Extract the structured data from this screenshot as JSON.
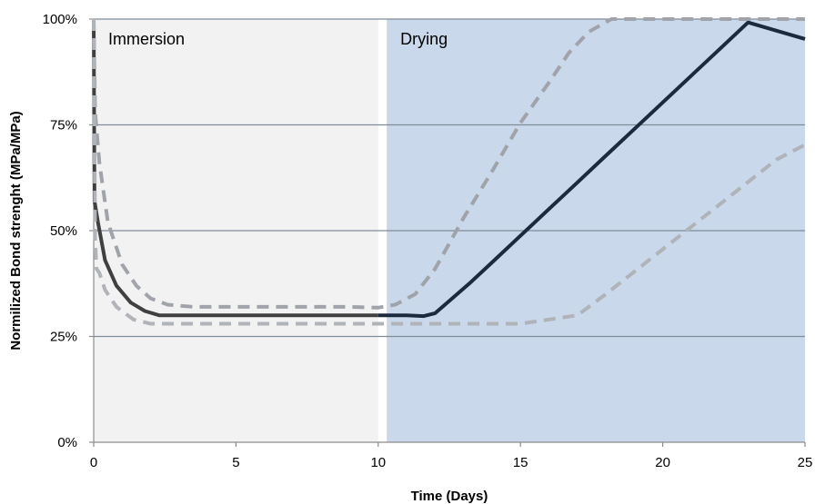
{
  "chart_data": {
    "type": "line",
    "title": "",
    "xlabel": "Time (Days)",
    "ylabel": "Normilized Bond strenght (MPa/MPa)",
    "xlim": [
      0,
      25
    ],
    "ylim": [
      0,
      100
    ],
    "x_ticks": [
      "0",
      "5",
      "10",
      "15",
      "20",
      "25"
    ],
    "y_ticks": [
      "0%",
      "25%",
      "50%",
      "75%",
      "100%"
    ],
    "grid": "horizontal",
    "legend": "none",
    "regions": [
      {
        "label": "Immersion",
        "x_start": 0,
        "x_end": 10,
        "color": "#f2f2f2"
      },
      {
        "label": "Drying",
        "x_start": 10.3,
        "x_end": 25,
        "color": "#c9d8ea"
      }
    ],
    "series": [
      {
        "style": "solid",
        "color_immersion": "#404040",
        "color_drying": "#1c2a40",
        "points": [
          [
            0,
            100
          ],
          [
            0.03,
            57
          ],
          [
            0.15,
            52
          ],
          [
            0.4,
            43
          ],
          [
            0.8,
            37
          ],
          [
            1.3,
            33
          ],
          [
            1.8,
            31
          ],
          [
            2.3,
            30
          ],
          [
            3,
            30
          ],
          [
            5,
            30
          ],
          [
            8,
            30
          ],
          [
            10,
            30
          ],
          [
            11,
            30
          ],
          [
            11.6,
            29.8
          ],
          [
            12,
            30.5
          ],
          [
            12.6,
            34
          ],
          [
            13.2,
            37.5
          ],
          [
            14,
            42.5
          ],
          [
            15,
            48.8
          ],
          [
            16,
            55.1
          ],
          [
            17,
            61.4
          ],
          [
            18,
            67.7
          ],
          [
            19,
            74
          ],
          [
            20,
            80.3
          ],
          [
            21,
            86.6
          ],
          [
            22,
            92.9
          ],
          [
            23,
            99.2
          ],
          [
            24,
            105.5
          ],
          [
            25,
            95.3
          ]
        ]
      },
      {
        "style": "dashed",
        "color": "#a0a4aa",
        "points": [
          [
            0,
            100
          ],
          [
            0.05,
            78
          ],
          [
            0.2,
            66
          ],
          [
            0.5,
            52
          ],
          [
            1,
            42
          ],
          [
            1.5,
            37
          ],
          [
            2,
            34
          ],
          [
            2.6,
            32.5
          ],
          [
            3.5,
            32
          ],
          [
            6,
            32
          ],
          [
            9,
            32
          ],
          [
            10,
            31.8
          ],
          [
            10.6,
            32.5
          ],
          [
            11.3,
            35
          ],
          [
            12,
            41
          ],
          [
            13,
            53
          ],
          [
            14,
            64
          ],
          [
            15,
            75.5
          ],
          [
            16,
            85
          ],
          [
            16.7,
            92
          ],
          [
            17.4,
            97
          ],
          [
            18.2,
            100
          ],
          [
            25,
            100
          ]
        ]
      },
      {
        "style": "dashed",
        "color": "#b0b3b8",
        "points": [
          [
            0,
            100
          ],
          [
            0.05,
            48
          ],
          [
            0.1,
            41
          ],
          [
            0.2,
            40
          ],
          [
            0.4,
            36
          ],
          [
            0.8,
            32
          ],
          [
            1.4,
            29
          ],
          [
            2,
            28
          ],
          [
            3,
            28
          ],
          [
            6,
            28
          ],
          [
            10,
            28
          ],
          [
            12,
            28
          ],
          [
            13,
            28
          ],
          [
            15,
            28
          ],
          [
            16,
            29
          ],
          [
            17,
            30
          ],
          [
            18,
            35
          ],
          [
            19,
            40.3
          ],
          [
            20,
            45.6
          ],
          [
            21,
            50.9
          ],
          [
            22,
            56.2
          ],
          [
            23,
            61.5
          ],
          [
            24,
            66.8
          ],
          [
            25,
            70.3
          ]
        ]
      }
    ]
  }
}
